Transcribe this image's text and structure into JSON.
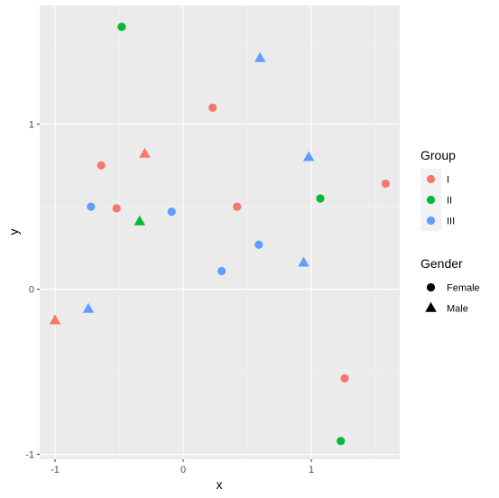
{
  "chart_data": {
    "type": "scatter",
    "xlabel": "x",
    "ylabel": "y",
    "xlim": [
      -1.12,
      1.69
    ],
    "ylim": [
      -1.03,
      1.72
    ],
    "x_ticks": [
      -1,
      0,
      1
    ],
    "y_ticks": [
      -1,
      0,
      1
    ],
    "x_tick_labels": [
      "-1",
      "0",
      "1"
    ],
    "y_tick_labels": [
      "-1",
      "0",
      "1"
    ],
    "grid": true,
    "legend_position": "right",
    "color_legend": {
      "title": "Group",
      "entries": [
        {
          "label": "I",
          "color": "#F8766D"
        },
        {
          "label": "II",
          "color": "#00BA38"
        },
        {
          "label": "III",
          "color": "#619CFF"
        }
      ]
    },
    "shape_legend": {
      "title": "Gender",
      "entries": [
        {
          "label": "Female",
          "shape": "circle"
        },
        {
          "label": "Male",
          "shape": "triangle"
        }
      ]
    },
    "points": [
      {
        "x": -0.48,
        "y": 1.59,
        "group": "II",
        "gender": "Female"
      },
      {
        "x": 0.6,
        "y": 1.4,
        "group": "III",
        "gender": "Male"
      },
      {
        "x": 0.23,
        "y": 1.1,
        "group": "I",
        "gender": "Female"
      },
      {
        "x": -0.3,
        "y": 0.82,
        "group": "I",
        "gender": "Male"
      },
      {
        "x": 0.98,
        "y": 0.8,
        "group": "III",
        "gender": "Male"
      },
      {
        "x": -0.64,
        "y": 0.75,
        "group": "I",
        "gender": "Female"
      },
      {
        "x": 1.58,
        "y": 0.64,
        "group": "I",
        "gender": "Female"
      },
      {
        "x": 1.07,
        "y": 0.55,
        "group": "II",
        "gender": "Female"
      },
      {
        "x": -0.72,
        "y": 0.5,
        "group": "III",
        "gender": "Female"
      },
      {
        "x": -0.52,
        "y": 0.49,
        "group": "I",
        "gender": "Female"
      },
      {
        "x": 0.42,
        "y": 0.5,
        "group": "I",
        "gender": "Female"
      },
      {
        "x": -0.09,
        "y": 0.47,
        "group": "III",
        "gender": "Female"
      },
      {
        "x": -0.34,
        "y": 0.41,
        "group": "II",
        "gender": "Male"
      },
      {
        "x": 0.59,
        "y": 0.27,
        "group": "III",
        "gender": "Female"
      },
      {
        "x": 0.94,
        "y": 0.16,
        "group": "III",
        "gender": "Male"
      },
      {
        "x": 0.3,
        "y": 0.11,
        "group": "III",
        "gender": "Female"
      },
      {
        "x": -0.74,
        "y": -0.12,
        "group": "III",
        "gender": "Male"
      },
      {
        "x": -1.0,
        "y": -0.19,
        "group": "I",
        "gender": "Male"
      },
      {
        "x": 1.26,
        "y": -0.54,
        "group": "I",
        "gender": "Female"
      },
      {
        "x": 1.23,
        "y": -0.92,
        "group": "II",
        "gender": "Female"
      }
    ]
  }
}
